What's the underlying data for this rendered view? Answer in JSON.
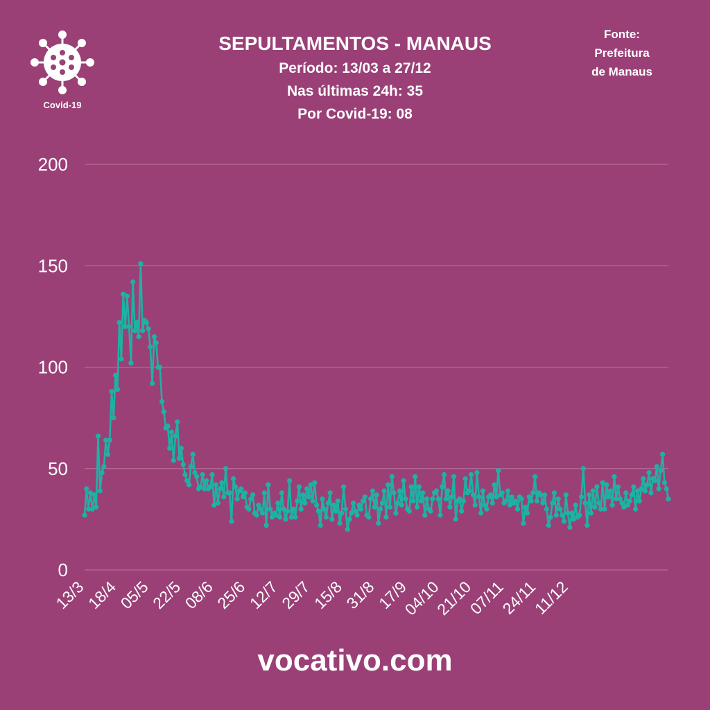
{
  "header": {
    "title": "SEPULTAMENTOS - MANAUS",
    "line1": "Período: 13/03 a 27/12",
    "line2": "Nas últimas 24h: 35",
    "line3": "Por Covid-19: 08"
  },
  "source": {
    "line1": "Fonte:",
    "line2": "Prefeitura",
    "line3": "de Manaus"
  },
  "logo": {
    "icon": "virus-icon",
    "label": "Covid-19"
  },
  "footer": {
    "brand": "vocativo.com"
  },
  "colors": {
    "background": "#9a4077",
    "series": "#1fb1a3",
    "grid": "#b9769c",
    "text": "#ffffff"
  },
  "chart_data": {
    "type": "line",
    "title": "SEPULTAMENTOS - MANAUS",
    "xlabel": "",
    "ylabel": "",
    "ylim": [
      0,
      200
    ],
    "yticks": [
      0,
      50,
      100,
      150,
      200
    ],
    "grid": true,
    "legend": "none",
    "x_start": "13/3",
    "x_end": "27/12",
    "xtick_labels": [
      "13/3",
      "18/4",
      "05/5",
      "22/5",
      "08/6",
      "25/6",
      "12/7",
      "29/7",
      "15/8",
      "31/8",
      "17/9",
      "04/10",
      "21/10",
      "07/11",
      "24/11",
      "11/12"
    ],
    "series": [
      {
        "values": [
          27,
          40,
          30,
          38,
          30,
          37,
          31,
          66,
          39,
          48,
          51,
          64,
          57,
          64,
          88,
          75,
          96,
          89,
          122,
          104,
          136,
          120,
          135,
          120,
          102,
          142,
          118,
          122,
          115,
          151,
          118,
          123,
          122,
          119,
          110,
          92,
          115,
          112,
          100,
          100,
          83,
          78,
          70,
          71,
          60,
          68,
          54,
          66,
          73,
          55,
          60,
          52,
          47,
          44,
          42,
          51,
          57,
          48,
          46,
          40,
          41,
          47,
          40,
          44,
          40,
          41,
          47,
          32,
          42,
          33,
          40,
          43,
          36,
          50,
          38,
          38,
          24,
          45,
          41,
          35,
          39,
          40,
          36,
          38,
          31,
          30,
          35,
          37,
          28,
          27,
          32,
          30,
          28,
          38,
          22,
          42,
          30,
          26,
          28,
          27,
          33,
          26,
          38,
          30,
          25,
          29,
          44,
          26,
          30,
          26,
          34,
          41,
          30,
          37,
          33,
          40,
          36,
          42,
          34,
          43,
          32,
          29,
          22,
          35,
          30,
          26,
          33,
          38,
          25,
          32,
          29,
          34,
          23,
          28,
          41,
          30,
          20,
          25,
          28,
          33,
          29,
          27,
          32,
          30,
          34,
          36,
          27,
          26,
          35,
          39,
          31,
          37,
          23,
          30,
          33,
          39,
          26,
          42,
          31,
          46,
          38,
          28,
          33,
          39,
          32,
          44,
          35,
          30,
          29,
          41,
          34,
          46,
          31,
          41,
          34,
          38,
          27,
          35,
          30,
          29,
          35,
          38,
          39,
          35,
          27,
          41,
          47,
          35,
          39,
          31,
          36,
          46,
          25,
          34,
          35,
          29,
          34,
          45,
          38,
          39,
          47,
          37,
          32,
          48,
          36,
          28,
          39,
          32,
          30,
          36,
          37,
          33,
          42,
          36,
          49,
          37,
          38,
          33,
          34,
          39,
          32,
          36,
          33,
          34,
          30,
          36,
          35,
          23,
          31,
          28,
          36,
          34,
          38,
          46,
          34,
          38,
          37,
          33,
          37,
          30,
          22,
          26,
          33,
          38,
          27,
          35,
          30,
          27,
          24,
          37,
          28,
          21,
          28,
          25,
          32,
          26,
          27,
          36,
          50,
          33,
          22,
          37,
          28,
          39,
          31,
          41,
          33,
          30,
          43,
          30,
          42,
          36,
          39,
          32,
          46,
          35,
          41,
          35,
          33,
          31,
          38,
          32,
          34,
          37,
          41,
          30,
          39,
          34,
          40,
          45,
          39,
          42,
          48,
          38,
          45,
          44,
          51,
          40,
          49,
          57,
          43,
          40,
          35
        ]
      }
    ]
  }
}
